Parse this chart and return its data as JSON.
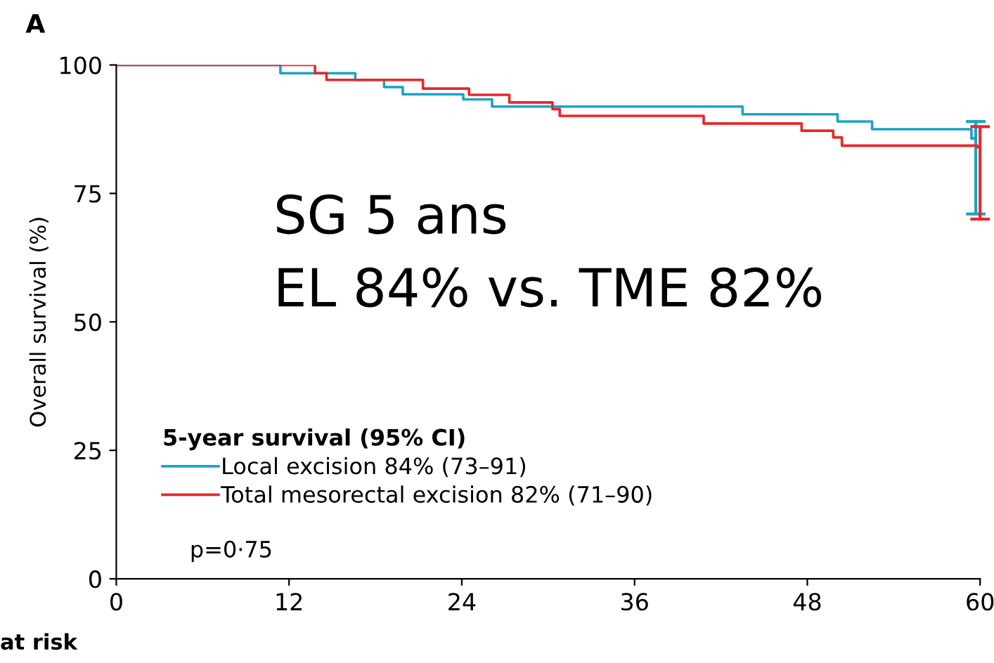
{
  "chart_data": {
    "type": "step",
    "title": "A",
    "ylabel": "Overall survival (%)",
    "legend_title": "5-year survival (95% CI)",
    "xlim": [
      0,
      60
    ],
    "ylim": [
      0,
      100
    ],
    "xticks": [
      0,
      12,
      24,
      36,
      48,
      60
    ],
    "yticks": [
      0,
      25,
      50,
      75,
      100
    ],
    "grid": false,
    "legend": "bottom left",
    "series": [
      {
        "name": "Local excision 84% (73–91)",
        "color": "#1ba3c6",
        "x": [
          0,
          11.4,
          16.6,
          18.6,
          19.9,
          24.1,
          26.1,
          43.5,
          50.1,
          52.5,
          59.4,
          59.7
        ],
        "values": [
          100,
          98.4,
          97.1,
          95.7,
          94.3,
          93.3,
          91.9,
          90.4,
          89.0,
          87.5,
          85.7,
          85.7
        ],
        "errors": [
          null,
          null,
          null,
          null,
          null,
          null,
          null,
          null,
          null,
          null,
          null,
          [
            71,
            89
          ]
        ]
      },
      {
        "name": "Total mesorectal excision 82% (71–90)",
        "color": "#e8262a",
        "x": [
          0,
          13.8,
          14.6,
          21.3,
          24.5,
          27.3,
          30.3,
          30.8,
          40.8,
          47.6,
          49.8,
          50.4,
          59.8,
          60
        ],
        "values": [
          100,
          98.4,
          97.1,
          95.4,
          94.2,
          92.7,
          91.4,
          90.1,
          88.6,
          87.2,
          85.9,
          84.3,
          84.0,
          84.0
        ],
        "errors": [
          null,
          null,
          null,
          null,
          null,
          null,
          null,
          null,
          null,
          null,
          null,
          null,
          null,
          [
            70,
            88
          ]
        ]
      }
    ],
    "annotations": [
      "SG 5 ans\nEL 84% vs. TME 82%",
      "p=0·75",
      "at risk"
    ]
  }
}
